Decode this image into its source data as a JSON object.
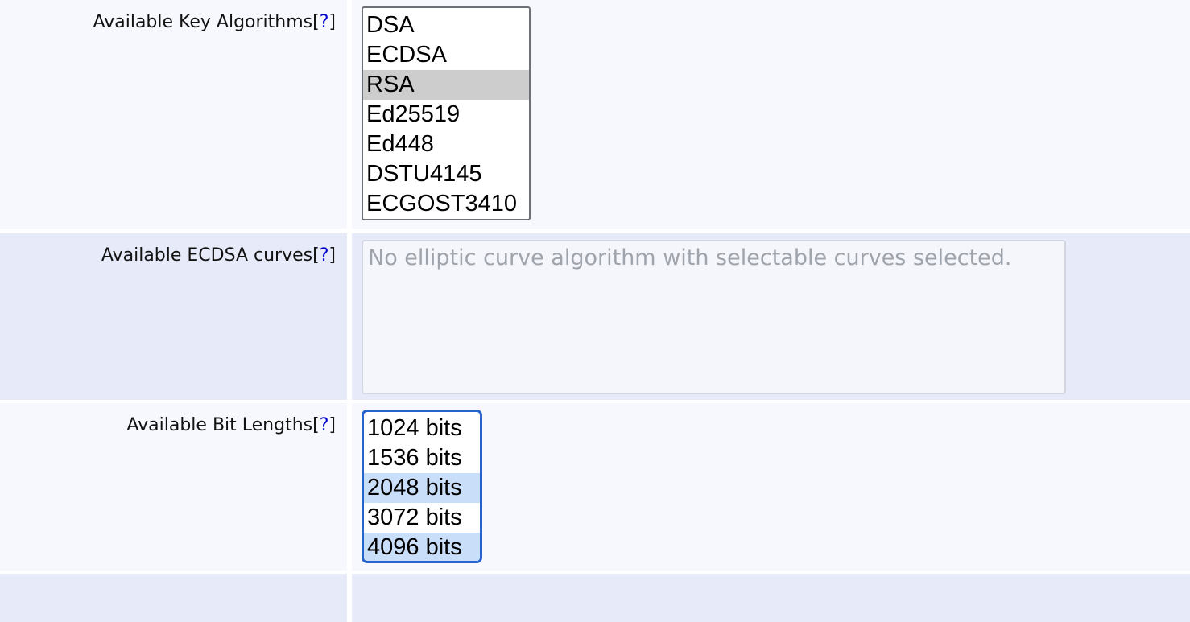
{
  "colors": {
    "row_light_bg": "#f7f8fd",
    "row_shade_bg": "#e7eaf9",
    "focus_border_blue": "#2565cb",
    "selected_option_focused_blue": "#c9def8",
    "selected_option_unfocused_gray": "#cdcdcd",
    "help_link_blue": "#0000cc"
  },
  "help": {
    "prefix": "[",
    "label": "?",
    "suffix": "]"
  },
  "fields": {
    "key_algorithms": {
      "label": "Available Key Algorithms",
      "options": [
        {
          "label": "DSA",
          "selected": false
        },
        {
          "label": "ECDSA",
          "selected": false
        },
        {
          "label": "RSA",
          "selected": true
        },
        {
          "label": "Ed25519",
          "selected": false
        },
        {
          "label": "Ed448",
          "selected": false
        },
        {
          "label": "DSTU4145",
          "selected": false
        },
        {
          "label": "ECGOST3410",
          "selected": false
        }
      ]
    },
    "ecdsa_curves": {
      "label": "Available ECDSA curves",
      "empty_message": "No elliptic curve algorithm with selectable curves selected."
    },
    "bit_lengths": {
      "label": "Available Bit Lengths",
      "options": [
        {
          "label": "1024 bits",
          "selected": false
        },
        {
          "label": "1536 bits",
          "selected": false
        },
        {
          "label": "2048 bits",
          "selected": true
        },
        {
          "label": "3072 bits",
          "selected": false
        },
        {
          "label": "4096 bits",
          "selected": true
        }
      ]
    }
  }
}
